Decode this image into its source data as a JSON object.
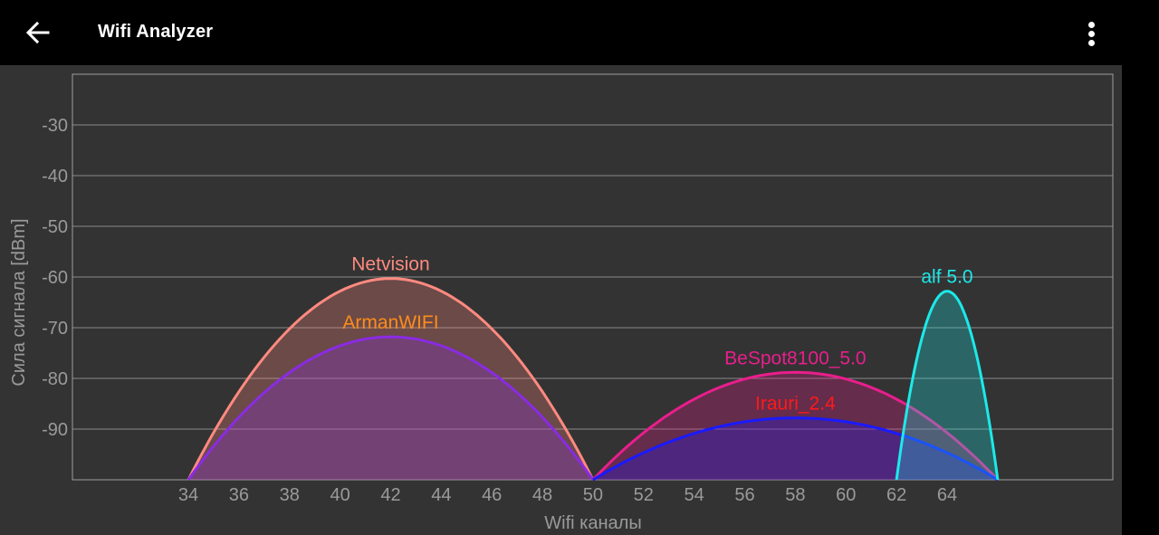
{
  "app": {
    "title": "Wifi Analyzer"
  },
  "icons": {
    "back": "arrow-left-icon",
    "menu": "more-vert-icon"
  },
  "chart_data": {
    "type": "area",
    "ylabel": "Сила сигнала [dBm]",
    "xlabel": "Wifi каналы",
    "y_ticks": [
      "-30",
      "-40",
      "-50",
      "-60",
      "-70",
      "-80",
      "-90"
    ],
    "x_ticks": [
      "34",
      "36",
      "38",
      "40",
      "42",
      "44",
      "46",
      "48",
      "50",
      "52",
      "54",
      "56",
      "58",
      "60",
      "62",
      "64"
    ],
    "ylim": [
      -100,
      -20
    ],
    "xlim": [
      29.4,
      70.6
    ],
    "grid": true,
    "series": [
      {
        "name": "Netvision",
        "start": 34,
        "end": 50,
        "peak": -60.3,
        "color": "#ff8a80"
      },
      {
        "name": "ArmanWIFI",
        "start": 34,
        "end": 50,
        "peak": -71.8,
        "color": "#8a2be2",
        "label_color": "#ff8c1a"
      },
      {
        "name": "BeSpot8100_5.0",
        "start": 50,
        "end": 66,
        "peak": -78.8,
        "color": "#e91e8c"
      },
      {
        "name": "Irauri_2.4",
        "start": 50,
        "end": 66,
        "peak": -87.8,
        "color": "#1a1aff",
        "label_color": "#ff1a1a"
      },
      {
        "name": "alf 5.0",
        "start": 62,
        "end": 66,
        "peak": -62.8,
        "color": "#1de9e9"
      }
    ]
  }
}
